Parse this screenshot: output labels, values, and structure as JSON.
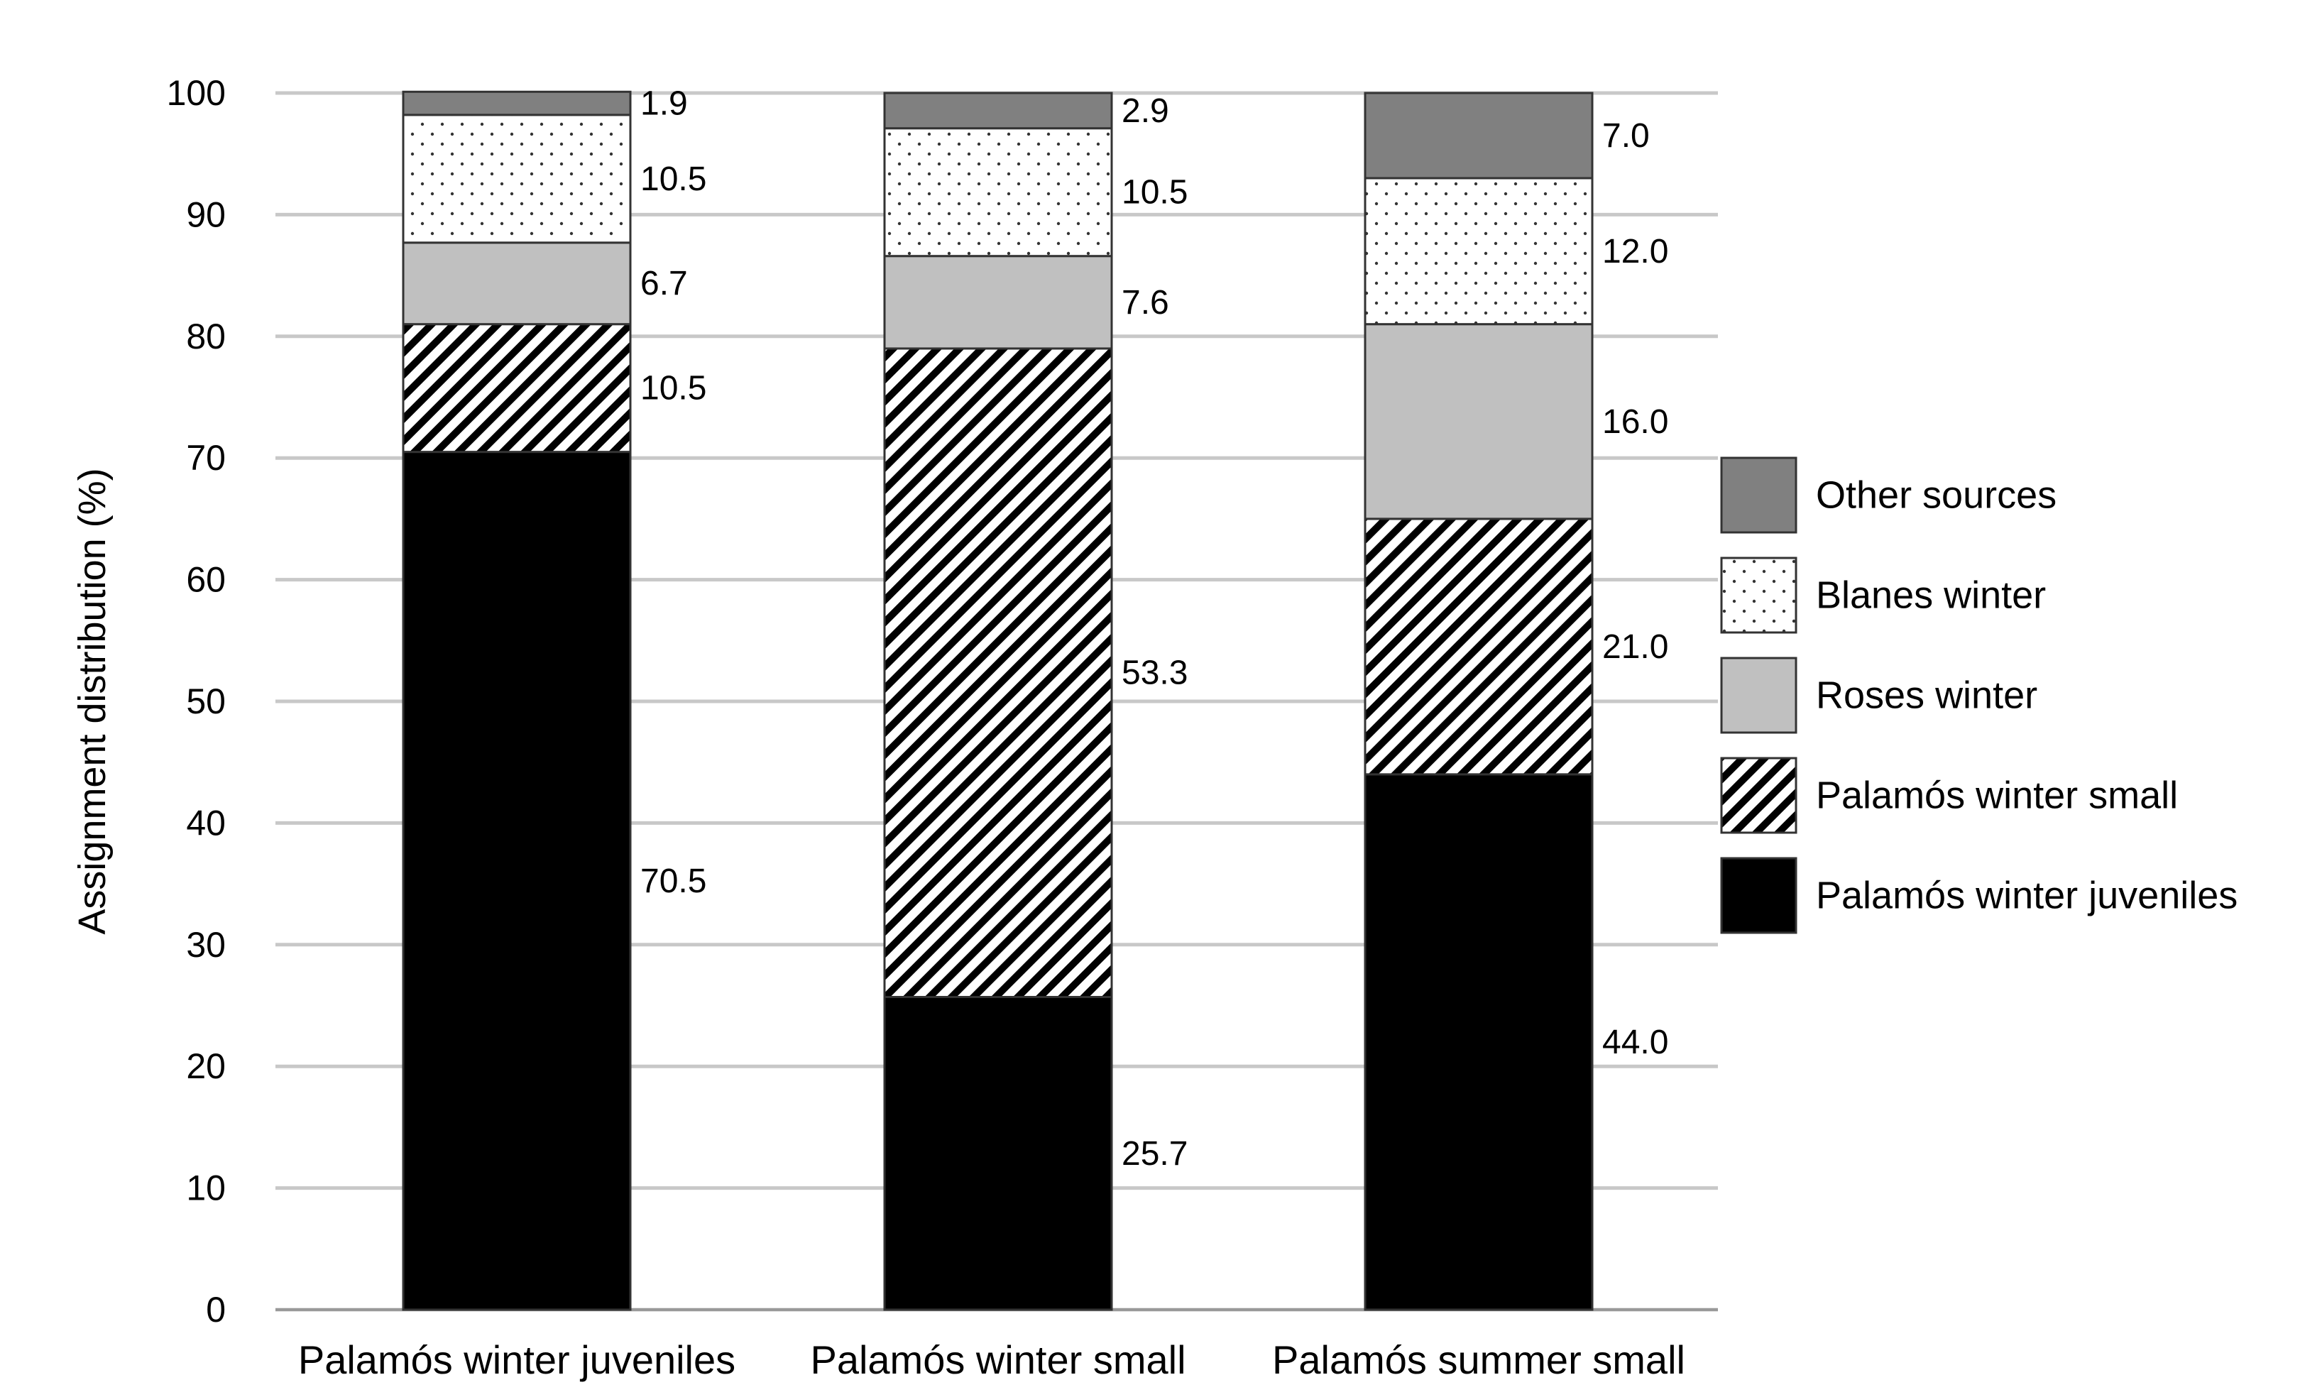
{
  "chart_data": {
    "type": "bar",
    "stacked": true,
    "title": "",
    "xlabel": "",
    "ylabel": "Assignment distribution (%)",
    "ylim": [
      0,
      100
    ],
    "yticks": [
      0,
      10,
      20,
      30,
      40,
      50,
      60,
      70,
      80,
      90,
      100
    ],
    "grid": "horizontal",
    "legend_position": "right",
    "categories": [
      "Palamós winter juveniles",
      "Palamós winter small",
      "Palamós summer small"
    ],
    "series": [
      {
        "name": "Palamós winter juveniles",
        "values": [
          70.5,
          25.7,
          44.0
        ],
        "labels": [
          "70.5",
          "25.7",
          "44.0"
        ],
        "fill": "solid",
        "color": "#000000"
      },
      {
        "name": "Palamós winter small",
        "values": [
          10.5,
          53.3,
          21.0
        ],
        "labels": [
          "10.5",
          "53.3",
          "21.0"
        ],
        "fill": "diagonal-hatch",
        "color": "#000000"
      },
      {
        "name": "Roses winter",
        "values": [
          6.7,
          7.6,
          16.0
        ],
        "labels": [
          "6.7",
          "7.6",
          "16.0"
        ],
        "fill": "solid",
        "color": "#c0c0c0"
      },
      {
        "name": "Blanes winter",
        "values": [
          10.5,
          10.5,
          12.0
        ],
        "labels": [
          "10.5",
          "10.5",
          "12.0"
        ],
        "fill": "dots",
        "color": "#ffffff"
      },
      {
        "name": "Other sources",
        "values": [
          1.9,
          2.9,
          7.0
        ],
        "labels": [
          "1.9",
          "2.9",
          "7.0"
        ],
        "fill": "solid",
        "color": "#808080"
      }
    ]
  }
}
